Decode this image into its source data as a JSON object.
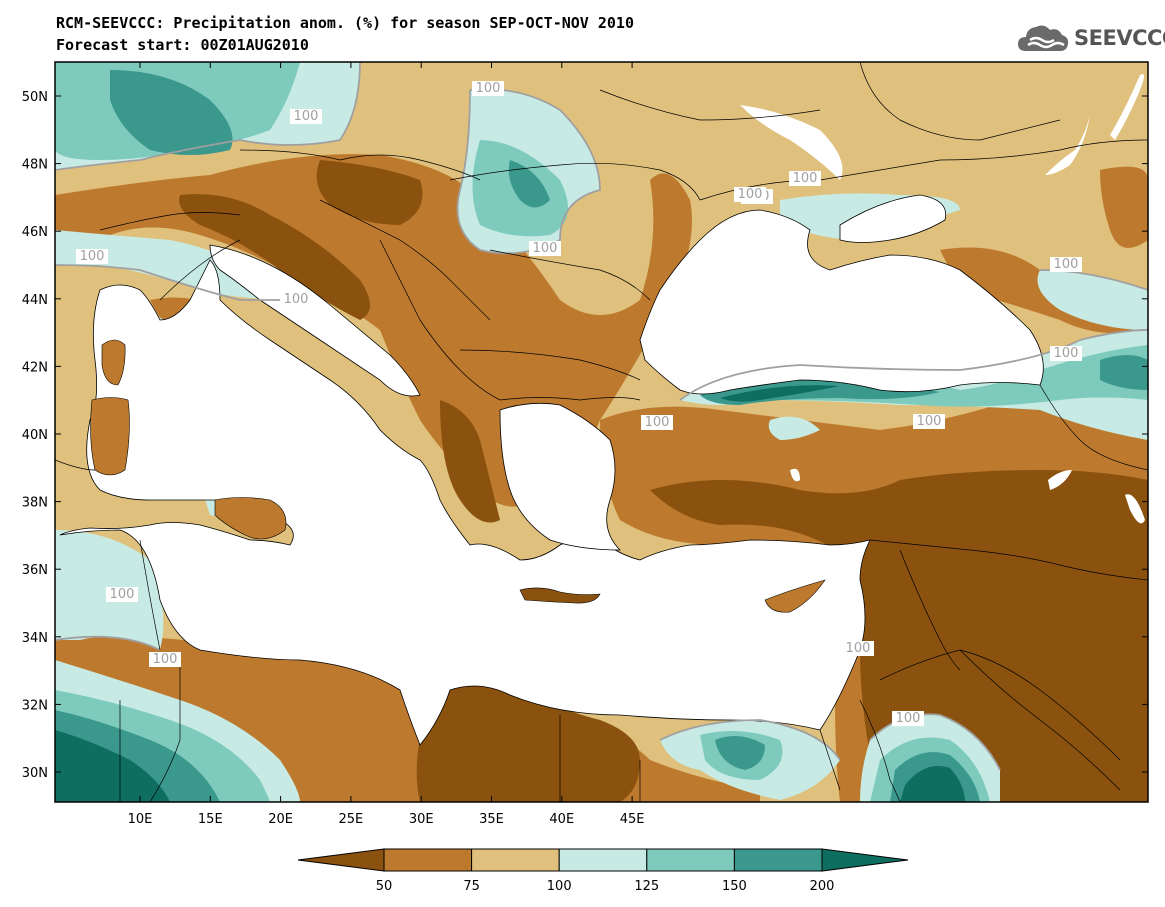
{
  "header": {
    "title_line1": "RCM-SEEVCCC: Precipitation anom. (%) for season SEP-OCT-NOV 2010",
    "title_line2": "Forecast start: 00Z01AUG2010",
    "logo_text": "SEEVCCC",
    "logo_icon": "cloud-icon"
  },
  "map": {
    "lon_ticks": [
      "10E",
      "15E",
      "20E",
      "25E",
      "30E",
      "35E",
      "40E",
      "45E"
    ],
    "lat_ticks": [
      "50N",
      "48N",
      "46N",
      "44N",
      "42N",
      "40N",
      "38N",
      "36N",
      "34N",
      "32N",
      "30N"
    ],
    "contour_labels": [
      "100",
      "100",
      "100",
      "100",
      "100",
      "100",
      "100",
      "100",
      "100",
      "100",
      "100",
      "100",
      "100",
      "100",
      "100",
      "100"
    ]
  },
  "colorbar": {
    "labels": [
      "50",
      "75",
      "100",
      "125",
      "150",
      "200"
    ],
    "colors": [
      "#8a520e",
      "#bd7a2e",
      "#dfc07c",
      "#c7ebe4",
      "#7ecbbd",
      "#3a988c",
      "#0e6e60"
    ]
  },
  "colors": {
    "dark_brown": "#8a520e",
    "mid_brown": "#bd7a2e",
    "tan": "#dfc07c",
    "pale_teal": "#c7ebe4",
    "light_teal": "#7ecbbd",
    "mid_teal": "#3a988c",
    "dark_teal": "#0e6e60",
    "contour_100": "#a0a0a0"
  }
}
